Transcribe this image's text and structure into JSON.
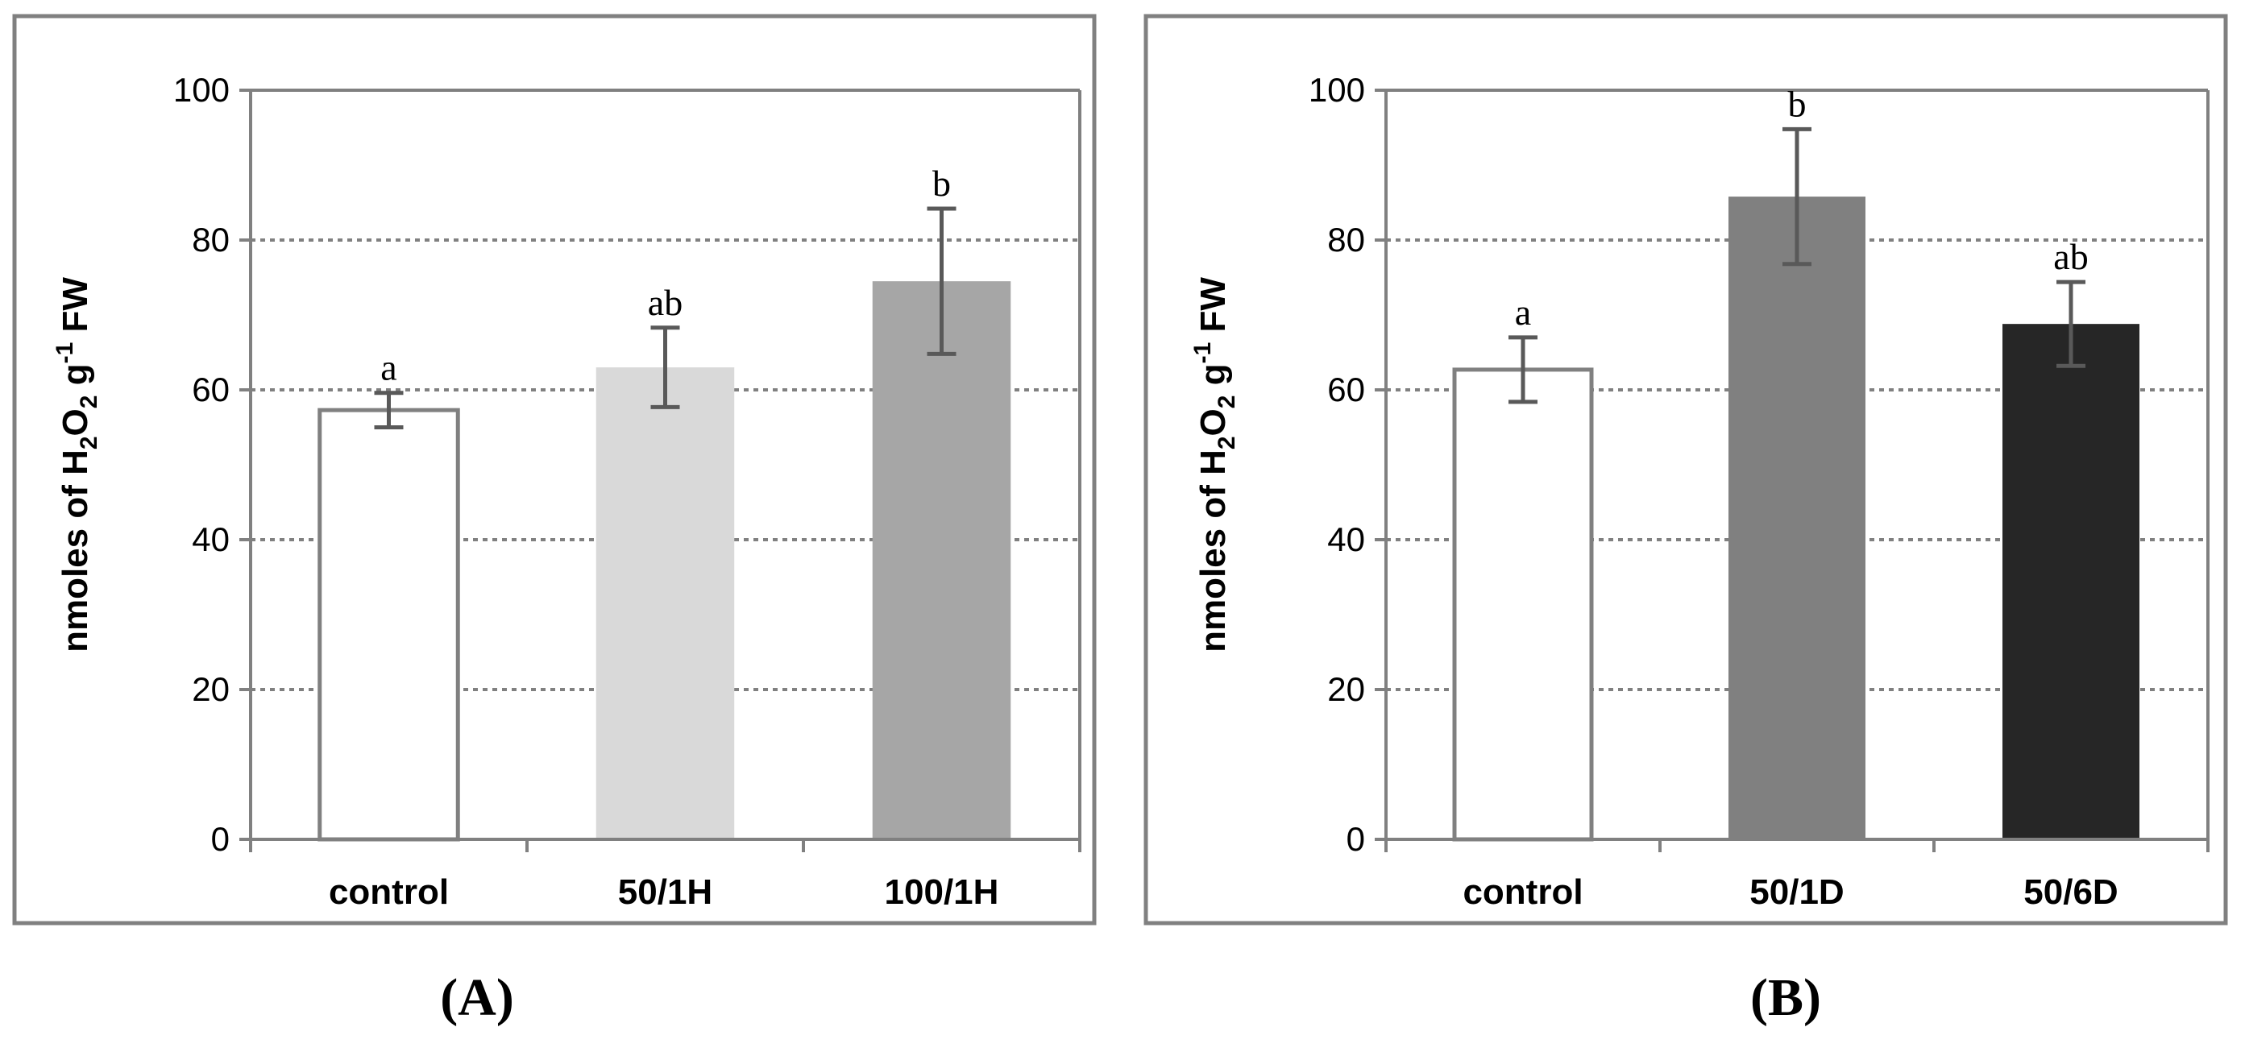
{
  "chart_data": [
    {
      "panel_label": "(A)",
      "type": "bar",
      "ylabel": {
        "main": "nmoles of H",
        "sub1": "2",
        "mid": "O",
        "sub2": "2",
        "post": " g",
        "sup": "-1",
        "tail": " FW"
      },
      "ylim": [
        0,
        100
      ],
      "yticks": [
        0,
        20,
        40,
        60,
        80,
        100
      ],
      "ytick_labels": [
        "0",
        "20",
        "40",
        "60",
        "80",
        "100"
      ],
      "grid": true,
      "categories": [
        "control",
        "50/1H",
        "100/1H"
      ],
      "values": [
        57.3,
        63,
        74.5
      ],
      "errors": [
        2.3,
        5.3,
        9.7
      ],
      "letters": [
        "a",
        "ab",
        "b"
      ],
      "bar_colors": [
        "#ffffff",
        "#d9d9d9",
        "#a6a6a6"
      ]
    },
    {
      "panel_label": "(B)",
      "type": "bar",
      "ylabel": {
        "main": "nmoles of H",
        "sub1": "2",
        "mid": "O",
        "sub2": "2",
        "post": " g",
        "sup": "-1",
        "tail": " FW"
      },
      "ylim": [
        0,
        100
      ],
      "yticks": [
        0,
        20,
        40,
        60,
        80,
        100
      ],
      "ytick_labels": [
        "0",
        "20",
        "40",
        "60",
        "80",
        "100"
      ],
      "grid": true,
      "categories": [
        "control",
        "50/1D",
        "50/6D"
      ],
      "values": [
        62.7,
        85.8,
        68.8
      ],
      "errors": [
        4.3,
        9,
        5.6
      ],
      "letters": [
        "a",
        "b",
        "ab"
      ],
      "bar_colors": [
        "#ffffff",
        "#808080",
        "#262626"
      ]
    }
  ]
}
